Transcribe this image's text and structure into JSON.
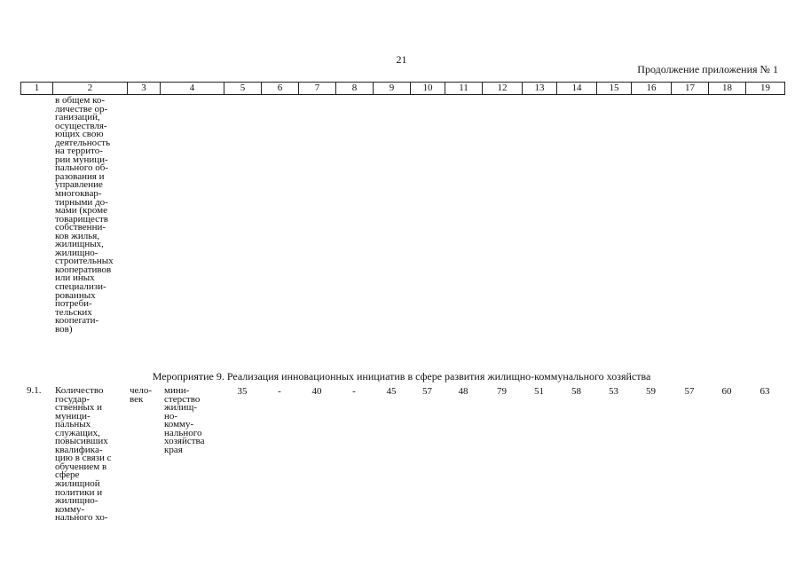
{
  "page_number": "21",
  "continuation": "Продолжение приложения № 1",
  "header_columns": [
    "1",
    "2",
    "3",
    "4",
    "5",
    "6",
    "7",
    "8",
    "9",
    "10",
    "11",
    "12",
    "13",
    "14",
    "15",
    "16",
    "17",
    "18",
    "19"
  ],
  "continued_row": {
    "text": "в общем ко-\nличестве ор-\nганизаций,\nосуществля-\nющих свою\nдеятельность\nна террито-\nрии муници-\nпального об-\nразования и\nуправление\nмногоквар-\nтирными до-\nмами (кроме\nтовариществ\nсобственни-\nков жилья,\nжилищных,\nжилищно-\nстроительных\nкооперативов\nили иных\nспециализи-\nрованных\nпотреби-\nтельских\nкоопerати-\nвов)"
  },
  "section_title": "Мероприятие 9. Реализация инновационных инициатив в сфере развития жилищно-коммунального хозяйства",
  "row": {
    "number": "9.1.",
    "indicator": "Количество\nгосудар-\nственных и\nмуници-\nпальных\nслужащих,\nповысивших\nквалифика-\nцию в связи с\nобучением в\nсфере\nжилищной\nполитики и\nжилищно-\nкомму-\nнального хо-",
    "unit": "чело-\nвек",
    "executor": "мини-\nстерство\nжилищ-\nно-\nкомму-\nнального\nхозяйства\nкрая",
    "values": [
      "35",
      "-",
      "40",
      "-",
      "45",
      "57",
      "48",
      "79",
      "51",
      "58",
      "53",
      "59",
      "57",
      "60",
      "63"
    ]
  }
}
